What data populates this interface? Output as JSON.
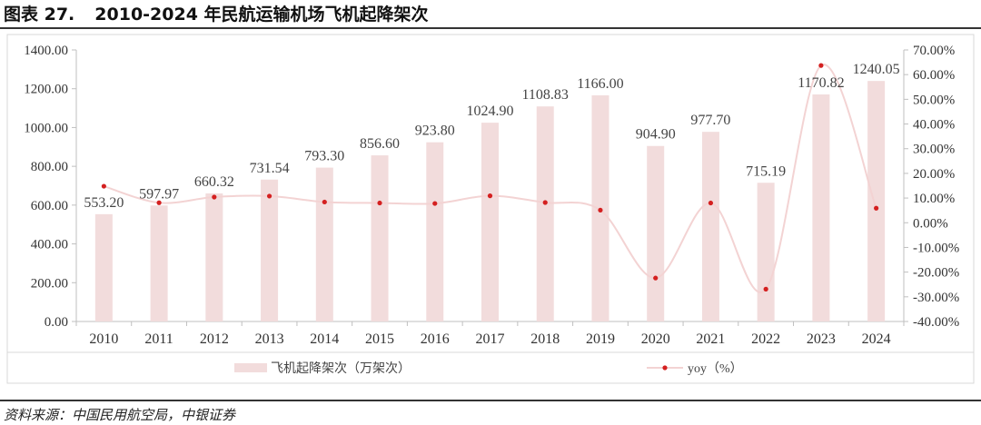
{
  "figure": {
    "number": "图表 27.",
    "title": "2010-2024 年民航运输机场飞机起降架次",
    "source": "资料来源：中国民用航空局，中银证券"
  },
  "colors": {
    "bar": "#f2dcdc",
    "line": "#f3d3d3",
    "marker": "#d42020",
    "axis": "#bfbfbf"
  },
  "chart_data": {
    "type": "bar",
    "title": "",
    "categories": [
      "2010",
      "2011",
      "2012",
      "2013",
      "2014",
      "2015",
      "2016",
      "2017",
      "2018",
      "2019",
      "2020",
      "2021",
      "2022",
      "2023",
      "2024"
    ],
    "series": [
      {
        "name": "飞机起降架次（万架次）",
        "type": "bar",
        "axis": "left",
        "values": [
          553.2,
          597.97,
          660.32,
          731.54,
          793.3,
          856.6,
          923.8,
          1024.9,
          1108.83,
          1166.0,
          904.9,
          977.7,
          715.19,
          1170.82,
          1240.05
        ],
        "labels": [
          "553.20",
          "597.97",
          "660.32",
          "731.54",
          "793.30",
          "856.60",
          "923.80",
          "1024.90",
          "1108.83",
          "1166.00",
          "904.90",
          "977.70",
          "715.19",
          "1170.82",
          "1240.05"
        ]
      },
      {
        "name": "yoy（%）",
        "type": "line",
        "axis": "right",
        "values": [
          14.8,
          8.1,
          10.4,
          10.8,
          8.4,
          8.0,
          7.8,
          10.9,
          8.2,
          5.1,
          -22.4,
          8.0,
          -26.9,
          63.7,
          5.9
        ]
      }
    ],
    "y_left": {
      "min": 0,
      "max": 1400,
      "step": 200,
      "ticks": [
        "0.00",
        "200.00",
        "400.00",
        "600.00",
        "800.00",
        "1000.00",
        "1200.00",
        "1400.00"
      ]
    },
    "y_right": {
      "min": -40,
      "max": 70,
      "step": 10,
      "ticks": [
        "-40.00%",
        "-30.00%",
        "-20.00%",
        "-10.00%",
        "0.00%",
        "10.00%",
        "20.00%",
        "30.00%",
        "40.00%",
        "50.00%",
        "60.00%",
        "70.00%"
      ]
    },
    "grid": false,
    "legend_position": "bottom"
  }
}
